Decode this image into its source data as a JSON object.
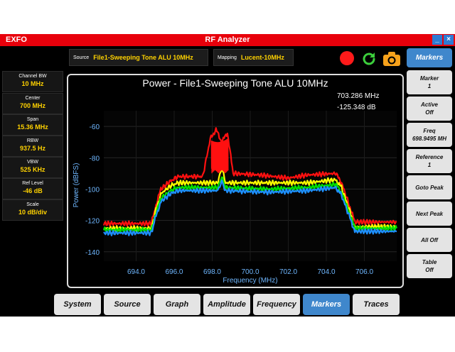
{
  "app": {
    "brand": "EXFO",
    "title": "RF Analyzer",
    "minimize": "_",
    "close": "×"
  },
  "source": {
    "label": "Source",
    "value": "File1-Sweeping Tone ALU 10MHz"
  },
  "mapping": {
    "label": "Mapping",
    "value": "Lucent-10MHz"
  },
  "params": [
    {
      "label": "Channel BW",
      "value": "10 MHz"
    },
    {
      "label": "Center",
      "value": "700 MHz"
    },
    {
      "label": "Span",
      "value": "15.36 MHz"
    },
    {
      "label": "RBW",
      "value": "937.5 Hz"
    },
    {
      "label": "VBW",
      "value": "525 KHz"
    },
    {
      "label": "Ref Level",
      "value": "-46 dB"
    },
    {
      "label": "Scale",
      "value": "10 dB/div"
    }
  ],
  "chart_data": {
    "type": "line",
    "title": "Power - File1-Sweeping Tone ALU 10MHz",
    "xlabel": "Frequency (MHz)",
    "ylabel": "Power (dBFS)",
    "xlim": [
      692.3,
      707.7
    ],
    "ylim": [
      -146,
      -50
    ],
    "x_ticks": [
      "694.0",
      "696.0",
      "698.0",
      "700.0",
      "702.0",
      "704.0",
      "706.0"
    ],
    "x_tick_values": [
      694,
      696,
      698,
      700,
      702,
      704,
      706
    ],
    "y_ticks": [
      "-60",
      "-80",
      "-100",
      "-120",
      "-140"
    ],
    "y_tick_values": [
      -60,
      -80,
      -100,
      -120,
      -140
    ],
    "marker_readout": {
      "frequency": "703.286 MHz",
      "power": "-125.348 dB"
    },
    "series": [
      {
        "color": "#ff1010",
        "values": [
          [
            692.3,
            -122
          ],
          [
            694.8,
            -122
          ],
          [
            695.0,
            -112
          ],
          [
            695.3,
            -100
          ],
          [
            695.8,
            -95
          ],
          [
            696.2,
            -92
          ],
          [
            697.5,
            -92
          ],
          [
            697.9,
            -68
          ],
          [
            698.2,
            -62
          ],
          [
            698.5,
            -70
          ],
          [
            698.8,
            -64
          ],
          [
            699.1,
            -90
          ],
          [
            700.5,
            -91
          ],
          [
            702.0,
            -93
          ],
          [
            703.0,
            -91
          ],
          [
            704.5,
            -90
          ],
          [
            704.8,
            -96
          ],
          [
            705.2,
            -110
          ],
          [
            705.5,
            -121
          ],
          [
            707.7,
            -121
          ]
        ]
      },
      {
        "color": "#ffff00",
        "values": [
          [
            692.3,
            -125
          ],
          [
            694.8,
            -125
          ],
          [
            695.0,
            -115
          ],
          [
            695.3,
            -103
          ],
          [
            695.8,
            -98
          ],
          [
            696.2,
            -96
          ],
          [
            698.3,
            -96
          ],
          [
            698.5,
            -86
          ],
          [
            698.7,
            -96
          ],
          [
            701.0,
            -96
          ],
          [
            703.0,
            -96
          ],
          [
            704.5,
            -94
          ],
          [
            704.8,
            -99
          ],
          [
            705.2,
            -113
          ],
          [
            705.5,
            -124
          ],
          [
            707.7,
            -124
          ]
        ]
      },
      {
        "color": "#00e000",
        "values": [
          [
            692.3,
            -126
          ],
          [
            694.8,
            -126
          ],
          [
            695.0,
            -117
          ],
          [
            695.3,
            -106
          ],
          [
            695.8,
            -101
          ],
          [
            696.2,
            -99
          ],
          [
            698.3,
            -99
          ],
          [
            698.5,
            -92
          ],
          [
            698.7,
            -99
          ],
          [
            701.0,
            -100
          ],
          [
            703.0,
            -99
          ],
          [
            704.5,
            -97
          ],
          [
            704.8,
            -102
          ],
          [
            705.2,
            -115
          ],
          [
            705.5,
            -125
          ],
          [
            707.7,
            -125
          ]
        ]
      },
      {
        "color": "#1e90ff",
        "values": [
          [
            692.3,
            -128
          ],
          [
            694.8,
            -128
          ],
          [
            695.0,
            -119
          ],
          [
            695.3,
            -108
          ],
          [
            695.8,
            -103
          ],
          [
            696.2,
            -101
          ],
          [
            698.3,
            -101
          ],
          [
            698.5,
            -95
          ],
          [
            698.7,
            -101
          ],
          [
            701.0,
            -102
          ],
          [
            703.0,
            -101
          ],
          [
            704.5,
            -99
          ],
          [
            704.8,
            -104
          ],
          [
            705.2,
            -117
          ],
          [
            705.5,
            -127
          ],
          [
            707.7,
            -127
          ]
        ]
      }
    ]
  },
  "right_buttons": [
    {
      "line1": "Markers",
      "line2": ""
    },
    {
      "line1": "Marker",
      "line2": "1"
    },
    {
      "line1": "Active",
      "line2": "Off"
    },
    {
      "line1": "Freq",
      "line2": "698.9495 MH"
    },
    {
      "line1": "Reference",
      "line2": "1"
    },
    {
      "line1": "Goto Peak",
      "line2": ""
    },
    {
      "line1": "Next Peak",
      "line2": ""
    },
    {
      "line1": "All Off",
      "line2": ""
    },
    {
      "line1": "Table",
      "line2": "Off"
    }
  ],
  "tabs": [
    "System",
    "Source",
    "Graph",
    "Amplitude",
    "Frequency",
    "Markers",
    "Traces"
  ],
  "active_tab": "Markers",
  "colors": {
    "titlebar": "#e8000b",
    "accent": "#3f87cc",
    "value_text": "#ffd200"
  }
}
